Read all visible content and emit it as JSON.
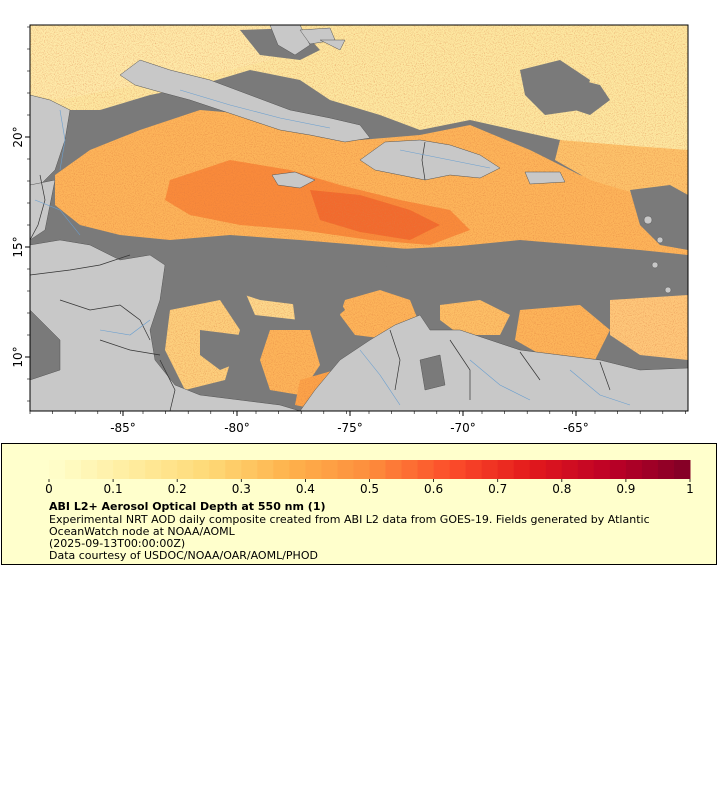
{
  "map": {
    "lon_ticks": [
      "-85°",
      "-80°",
      "-75°",
      "-70°",
      "-65°"
    ],
    "lat_ticks": [
      "20°",
      "15°",
      "10°"
    ],
    "colors": {
      "land": "#c8c8c8",
      "no_data": "#7a7a7a",
      "border": "#333333",
      "river": "#6a9fd0"
    }
  },
  "legend": {
    "title": "ABI L2+ Aerosol Optical Depth at 550 nm (1)",
    "description": "Experimental NRT AOD daily composite created from ABI L2 data from GOES-19. Fields generated by Atlantic OceanWatch node at NOAA/AOML",
    "date": "(2025-09-13T00:00:00Z)",
    "credit": "Data courtesy of USDOC/NOAA/OAR/AOML/PHOD",
    "colorbar_labels": [
      "0",
      "0.1",
      "0.2",
      "0.3",
      "0.4",
      "0.5",
      "0.6",
      "0.7",
      "0.8",
      "0.9",
      "1"
    ],
    "colorbar_range": [
      0,
      1
    ],
    "colormap": [
      "#ffffcc",
      "#ffeda0",
      "#fed976",
      "#feb24c",
      "#fd8d3c",
      "#fc4e2a",
      "#e31a1c",
      "#bd0026",
      "#800026"
    ]
  }
}
